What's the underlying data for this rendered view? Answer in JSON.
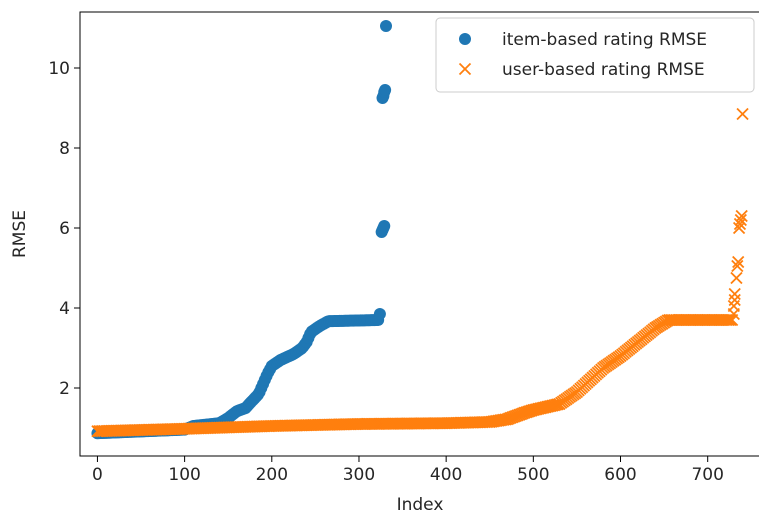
{
  "chart_data": {
    "type": "scatter",
    "xlabel": "Index",
    "ylabel": "RMSE",
    "xlim": [
      -20,
      760
    ],
    "ylim": [
      0.3,
      11.4
    ],
    "x_ticks": [
      0,
      100,
      200,
      300,
      400,
      500,
      600,
      700
    ],
    "y_ticks": [
      2,
      4,
      6,
      8,
      10
    ],
    "grid": false,
    "legend": "top-right",
    "series": [
      {
        "name": "item-based rating RMSE",
        "marker": "circle",
        "color": "#1f77b4",
        "count": 333,
        "curve": [
          [
            0,
            0.87
          ],
          [
            100,
            0.96
          ],
          [
            110,
            1.05
          ],
          [
            140,
            1.12
          ],
          [
            150,
            1.25
          ],
          [
            160,
            1.42
          ],
          [
            170,
            1.5
          ],
          [
            175,
            1.62
          ],
          [
            185,
            1.85
          ],
          [
            190,
            2.1
          ],
          [
            195,
            2.35
          ],
          [
            200,
            2.55
          ],
          [
            210,
            2.7
          ],
          [
            225,
            2.85
          ],
          [
            235,
            3.0
          ],
          [
            240,
            3.15
          ],
          [
            245,
            3.4
          ],
          [
            255,
            3.55
          ],
          [
            265,
            3.67
          ],
          [
            322,
            3.7
          ],
          [
            324,
            3.85
          ],
          [
            325,
            3.93
          ]
        ],
        "outliers": [
          [
            326,
            5.9
          ],
          [
            327,
            5.95
          ],
          [
            328,
            6.0
          ],
          [
            329,
            6.05
          ],
          [
            327,
            9.25
          ],
          [
            328,
            9.3
          ],
          [
            329,
            9.4
          ],
          [
            330,
            9.45
          ],
          [
            331,
            11.05
          ]
        ]
      },
      {
        "name": "user-based rating RMSE",
        "marker": "x",
        "color": "#ff7f0e",
        "count": 740,
        "curve": [
          [
            0,
            0.92
          ],
          [
            100,
            0.98
          ],
          [
            200,
            1.05
          ],
          [
            300,
            1.1
          ],
          [
            400,
            1.12
          ],
          [
            450,
            1.15
          ],
          [
            470,
            1.22
          ],
          [
            480,
            1.3
          ],
          [
            490,
            1.38
          ],
          [
            500,
            1.45
          ],
          [
            510,
            1.5
          ],
          [
            520,
            1.55
          ],
          [
            530,
            1.6
          ],
          [
            540,
            1.75
          ],
          [
            550,
            1.9
          ],
          [
            560,
            2.1
          ],
          [
            570,
            2.3
          ],
          [
            580,
            2.5
          ],
          [
            600,
            2.8
          ],
          [
            620,
            3.15
          ],
          [
            640,
            3.5
          ],
          [
            655,
            3.7
          ],
          [
            728,
            3.7
          ]
        ],
        "outliers": [
          [
            730,
            3.85
          ],
          [
            730,
            4.05
          ],
          [
            731,
            4.2
          ],
          [
            731,
            4.35
          ],
          [
            733,
            4.75
          ],
          [
            734,
            5.05
          ],
          [
            735,
            5.15
          ],
          [
            736,
            6.0
          ],
          [
            737,
            6.1
          ],
          [
            738,
            6.2
          ],
          [
            739,
            6.3
          ],
          [
            740,
            8.85
          ]
        ]
      }
    ]
  }
}
